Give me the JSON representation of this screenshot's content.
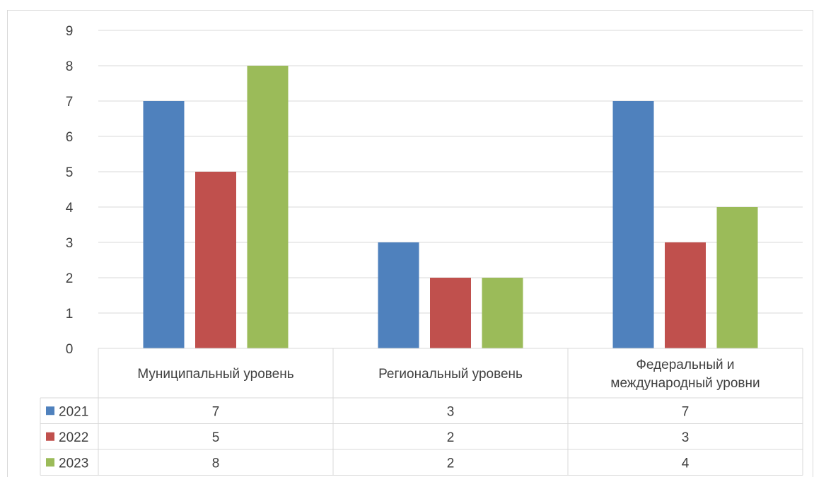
{
  "chart_data": {
    "type": "bar",
    "categories": [
      "Муниципальный уровень",
      "Региональный уровень",
      "Федеральный и международный уровни"
    ],
    "category_lines": [
      [
        "Муниципальный уровень"
      ],
      [
        "Региональный уровень"
      ],
      [
        "Федеральный и",
        "международный уровни"
      ]
    ],
    "series": [
      {
        "name": "2021",
        "values": [
          7,
          3,
          7
        ],
        "color": "#4F81BD"
      },
      {
        "name": "2022",
        "values": [
          5,
          2,
          3
        ],
        "color": "#C0504D"
      },
      {
        "name": "2023",
        "values": [
          8,
          2,
          4
        ],
        "color": "#9BBB59"
      }
    ],
    "ylim": [
      0,
      9
    ],
    "yticks": [
      0,
      1,
      2,
      3,
      4,
      5,
      6,
      7,
      8,
      9
    ],
    "grid": true,
    "legend": "data-table",
    "data_table": true
  }
}
